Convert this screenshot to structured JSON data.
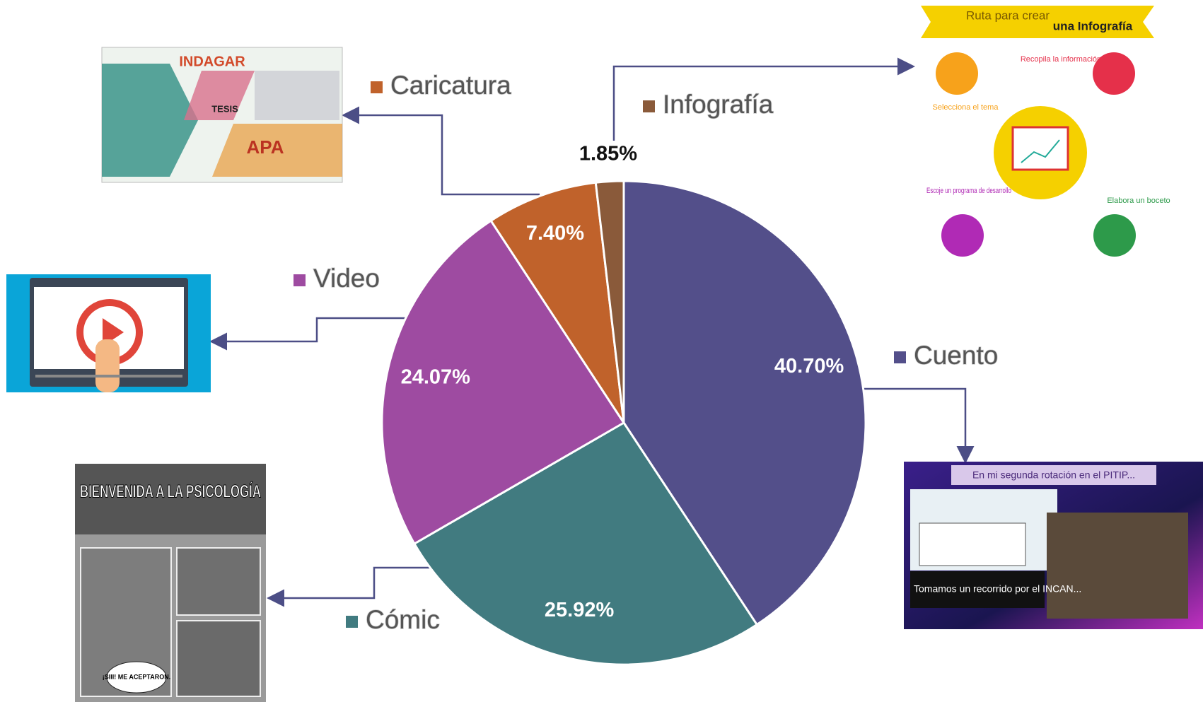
{
  "chart_data": {
    "type": "pie",
    "categories": [
      "Cuento",
      "Cómic",
      "Video",
      "Caricatura",
      "Infografía"
    ],
    "values": [
      40.7,
      25.92,
      24.07,
      7.4,
      1.85
    ],
    "value_labels": [
      "40.70%",
      "25.92%",
      "24.07%",
      "7.40%",
      "1.85%"
    ],
    "colors": [
      "#534f8a",
      "#417b80",
      "#9e4ba1",
      "#c0622b",
      "#8a5a3a"
    ]
  },
  "thumbnails": {
    "infografia": {
      "title_1": "Ruta para crear",
      "title_2": "una Infografía",
      "steps": [
        "Selecciona el tema",
        "Recopila la información",
        "Elabora un boceto",
        "Escoje un programa de desarrollo"
      ]
    },
    "caricatura": {
      "texts": [
        "INDAGAR",
        "TESIS",
        "APA"
      ]
    },
    "comic": {
      "title": "BIENVENIDA A LA PSICOLOGÍA",
      "bubble": "¡SIII! ME ACEPTARON."
    },
    "cuento": {
      "title": "En mi segunda rotación en el PITIP...",
      "caption": "Tomamos un recorrido por el INCAN..."
    }
  }
}
